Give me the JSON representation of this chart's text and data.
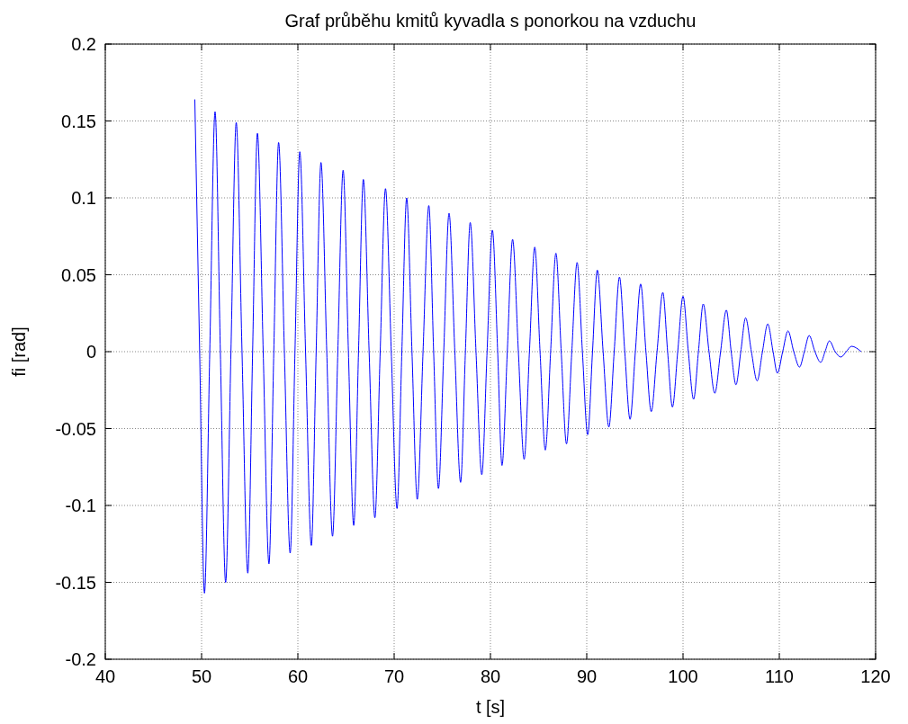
{
  "chart_data": {
    "type": "line",
    "title": "Graf průběhu kmitů kyvadla s ponorkou na vzduchu",
    "xlabel": "t [s]",
    "ylabel": "fi [rad]",
    "xlim": [
      40,
      120
    ],
    "xticks": [
      40,
      50,
      60,
      70,
      80,
      90,
      100,
      110,
      120
    ],
    "ylim": [
      -0.2,
      0.2
    ],
    "yticks": [
      -0.2,
      -0.15,
      -0.1,
      -0.05,
      0,
      0.05,
      0.1,
      0.15,
      0.2
    ],
    "grid": true,
    "marker": "none",
    "line_style": "solid",
    "series": [
      {
        "color": "#0000ff",
        "x": [
          49.3,
          49.8,
          50.3,
          50.85,
          51.4,
          51.95,
          52.5,
          53.05,
          53.6,
          54.2,
          54.8,
          55.3,
          55.8,
          56.4,
          57.0,
          57.5,
          58.0,
          58.6,
          59.2,
          59.7,
          60.2,
          60.8,
          61.4,
          61.9,
          62.4,
          63.0,
          63.6,
          64.15,
          64.7,
          65.25,
          65.8,
          66.3,
          66.8,
          67.4,
          68.0,
          68.55,
          69.1,
          69.7,
          70.3,
          70.8,
          71.3,
          71.85,
          72.4,
          73.0,
          73.6,
          74.1,
          74.6,
          75.15,
          75.7,
          76.3,
          76.9,
          77.4,
          77.9,
          78.5,
          79.1,
          79.65,
          80.2,
          80.75,
          81.2,
          81.75,
          82.3,
          82.9,
          83.5,
          84.05,
          84.6,
          85.15,
          85.7,
          86.25,
          86.8,
          87.35,
          87.9,
          88.45,
          89.0,
          89.55,
          90.1,
          90.6,
          91.1,
          91.7,
          92.3,
          92.85,
          93.4,
          93.95,
          94.5,
          95.05,
          95.6,
          96.15,
          96.7,
          97.3,
          97.9,
          98.4,
          98.9,
          99.45,
          100.0,
          100.55,
          101.1,
          101.6,
          102.1,
          102.7,
          103.3,
          103.9,
          104.5,
          105.0,
          105.5,
          106.0,
          106.5,
          107.1,
          107.7,
          108.25,
          108.8,
          109.35,
          109.8,
          110.35,
          110.9,
          111.5,
          112.1,
          112.6,
          113.1,
          113.7,
          114.3,
          114.75,
          115.2,
          115.8,
          116.4,
          116.95,
          117.5,
          118.5
        ],
        "values": [
          0.164,
          0,
          -0.157,
          0,
          0.156,
          0,
          -0.15,
          0,
          0.149,
          0,
          -0.144,
          0,
          0.142,
          0,
          -0.138,
          0,
          0.136,
          0,
          -0.131,
          0,
          0.13,
          0,
          -0.126,
          0,
          0.123,
          0,
          -0.12,
          0,
          0.118,
          0,
          -0.113,
          0,
          0.112,
          0,
          -0.108,
          0,
          0.106,
          0,
          -0.102,
          0,
          0.1,
          0,
          -0.096,
          0,
          0.095,
          0,
          -0.089,
          0,
          0.09,
          0,
          -0.085,
          0,
          0.084,
          0,
          -0.08,
          0,
          0.079,
          0,
          -0.074,
          0,
          0.073,
          0,
          -0.07,
          0,
          0.068,
          0,
          -0.064,
          0,
          0.064,
          0,
          -0.06,
          0,
          0.058,
          0,
          -0.054,
          0,
          0.053,
          0,
          -0.049,
          0,
          0.0485,
          0,
          -0.044,
          0,
          0.044,
          0,
          -0.039,
          0,
          0.0385,
          0,
          -0.036,
          0,
          0.036,
          0,
          -0.031,
          0,
          0.031,
          0,
          -0.027,
          0,
          0.027,
          0,
          -0.0215,
          0,
          0.022,
          0,
          -0.019,
          0,
          0.018,
          0,
          -0.014,
          0,
          0.0135,
          0,
          -0.01,
          0,
          0.0105,
          0,
          -0.007,
          0,
          0.007,
          0,
          -0.0035,
          0,
          0.0035,
          0
        ]
      }
    ]
  }
}
